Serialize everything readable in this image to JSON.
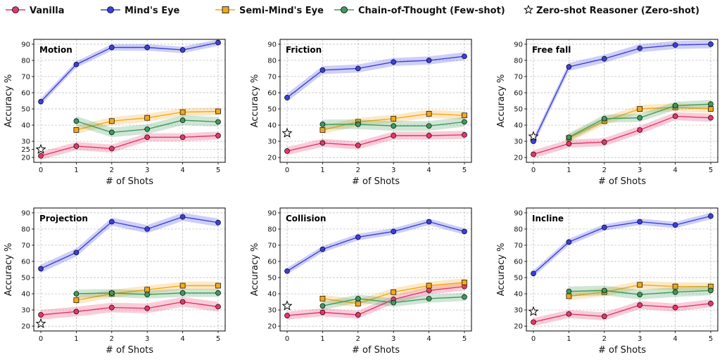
{
  "legend": {
    "items": [
      {
        "label": "Vanilla",
        "marker": "circle",
        "color": "#e8356a"
      },
      {
        "label": "Mind's Eye",
        "marker": "circle",
        "color": "#3a3fe0"
      },
      {
        "label": "Semi-Mind's Eye",
        "marker": "square",
        "color": "#f2a81d"
      },
      {
        "label": "Chain-of-Thought (Few-shot)",
        "marker": "circle",
        "color": "#3f9a5c"
      },
      {
        "label": "Zero-shot Reasoner (Zero-shot)",
        "marker": "star",
        "color": "#ffffff"
      }
    ]
  },
  "chart_data": [
    {
      "type": "line",
      "title": "Motion",
      "xlabel": "# of Shots",
      "ylabel": "Accuracy %",
      "x": [
        0,
        1,
        2,
        3,
        4,
        5
      ],
      "xlim": [
        0,
        5
      ],
      "ylim": [
        17,
        93
      ],
      "yticks": [
        20,
        25,
        30,
        40,
        50,
        60,
        70,
        80,
        90
      ],
      "grid": true,
      "series": [
        {
          "name": "Vanilla",
          "x": [
            0,
            1,
            2,
            3,
            4,
            5
          ],
          "values": [
            21,
            27,
            25.5,
            32.5,
            32.5,
            33.5
          ],
          "band": 2.5
        },
        {
          "name": "Mind's Eye",
          "x": [
            0,
            1,
            2,
            3,
            4,
            5
          ],
          "values": [
            54.5,
            77.5,
            88,
            88,
            86.5,
            91
          ],
          "band": 2
        },
        {
          "name": "Semi-Mind's Eye",
          "x": [
            1,
            2,
            3,
            4,
            5
          ],
          "values": [
            37,
            42.5,
            44.5,
            48,
            48.5
          ],
          "band": 2.5
        },
        {
          "name": "Chain-of-Thought (Few-shot)",
          "x": [
            1,
            2,
            3,
            4,
            5
          ],
          "values": [
            42.5,
            35.5,
            37.5,
            43,
            42
          ],
          "band": 3
        },
        {
          "name": "Zero-shot Reasoner (Zero-shot)",
          "x": [
            0
          ],
          "values": [
            25
          ],
          "band": 0
        }
      ]
    },
    {
      "type": "line",
      "title": "Friction",
      "xlabel": "# of Shots",
      "ylabel": "Accuracy %",
      "x": [
        0,
        1,
        2,
        3,
        4,
        5
      ],
      "xlim": [
        0,
        5
      ],
      "ylim": [
        17,
        93
      ],
      "yticks": [
        20,
        30,
        40,
        50,
        60,
        70,
        80,
        90
      ],
      "grid": true,
      "series": [
        {
          "name": "Vanilla",
          "x": [
            0,
            1,
            2,
            3,
            4,
            5
          ],
          "values": [
            24,
            29,
            27.5,
            33.5,
            33.5,
            34
          ],
          "band": 2.5
        },
        {
          "name": "Mind's Eye",
          "x": [
            0,
            1,
            2,
            3,
            4,
            5
          ],
          "values": [
            57,
            74,
            75,
            79,
            80,
            82.5
          ],
          "band": 2.5
        },
        {
          "name": "Semi-Mind's Eye",
          "x": [
            1,
            2,
            3,
            4,
            5
          ],
          "values": [
            37,
            42,
            44,
            47,
            46
          ],
          "band": 2.5
        },
        {
          "name": "Chain-of-Thought (Few-shot)",
          "x": [
            1,
            2,
            3,
            4,
            5
          ],
          "values": [
            40.5,
            40.5,
            39.5,
            39.5,
            42
          ],
          "band": 3
        },
        {
          "name": "Zero-shot Reasoner (Zero-shot)",
          "x": [
            0
          ],
          "values": [
            35
          ],
          "band": 0
        }
      ]
    },
    {
      "type": "line",
      "title": "Free fall",
      "xlabel": "# of Shots",
      "ylabel": "Accuracy %",
      "x": [
        0,
        1,
        2,
        3,
        4,
        5
      ],
      "xlim": [
        0,
        5
      ],
      "ylim": [
        17,
        93
      ],
      "yticks": [
        20,
        30,
        40,
        50,
        60,
        70,
        80,
        90
      ],
      "grid": true,
      "series": [
        {
          "name": "Vanilla",
          "x": [
            0,
            1,
            2,
            3,
            4,
            5
          ],
          "values": [
            22,
            28.5,
            29.5,
            37,
            45.5,
            44.5
          ],
          "band": 2.5
        },
        {
          "name": "Mind's Eye",
          "x": [
            0,
            1,
            2,
            3,
            4,
            5
          ],
          "values": [
            30,
            76,
            81,
            87.5,
            89.5,
            90
          ],
          "band": 2.5
        },
        {
          "name": "Semi-Mind's Eye",
          "x": [
            1,
            2,
            3,
            4,
            5
          ],
          "values": [
            32,
            42.5,
            50,
            51,
            50
          ],
          "band": 2.5
        },
        {
          "name": "Chain-of-Thought (Few-shot)",
          "x": [
            1,
            2,
            3,
            4,
            5
          ],
          "values": [
            32.5,
            44,
            44.5,
            52,
            53
          ],
          "band": 2.5
        },
        {
          "name": "Zero-shot Reasoner (Zero-shot)",
          "x": [
            0
          ],
          "values": [
            33
          ],
          "band": 0
        }
      ]
    },
    {
      "type": "line",
      "title": "Projection",
      "xlabel": "# of Shots",
      "ylabel": "Accuracy %",
      "x": [
        0,
        1,
        2,
        3,
        4,
        5
      ],
      "xlim": [
        0,
        5
      ],
      "ylim": [
        17,
        93
      ],
      "yticks": [
        20,
        30,
        40,
        50,
        60,
        70,
        80,
        90
      ],
      "grid": true,
      "series": [
        {
          "name": "Vanilla",
          "x": [
            0,
            1,
            2,
            3,
            4,
            5
          ],
          "values": [
            27,
            29,
            31.5,
            31,
            35,
            32
          ],
          "band": 3
        },
        {
          "name": "Mind's Eye",
          "x": [
            0,
            1,
            2,
            3,
            4,
            5
          ],
          "values": [
            55.5,
            65.5,
            84.5,
            80,
            87.5,
            84
          ],
          "band": 2.5
        },
        {
          "name": "Semi-Mind's Eye",
          "x": [
            1,
            2,
            3,
            4,
            5
          ],
          "values": [
            36,
            40,
            42.5,
            45,
            45
          ],
          "band": 2.5
        },
        {
          "name": "Chain-of-Thought (Few-shot)",
          "x": [
            1,
            2,
            3,
            4,
            5
          ],
          "values": [
            40,
            40.5,
            39.5,
            40.5,
            40.5
          ],
          "band": 2.5
        },
        {
          "name": "Zero-shot Reasoner (Zero-shot)",
          "x": [
            0
          ],
          "values": [
            21.5
          ],
          "band": 0
        }
      ]
    },
    {
      "type": "line",
      "title": "Collision",
      "xlabel": "# of Shots",
      "ylabel": "Accuracy %",
      "x": [
        0,
        1,
        2,
        3,
        4,
        5
      ],
      "xlim": [
        0,
        5
      ],
      "ylim": [
        17,
        93
      ],
      "yticks": [
        20,
        30,
        40,
        50,
        60,
        70,
        80,
        90
      ],
      "grid": true,
      "series": [
        {
          "name": "Vanilla",
          "x": [
            0,
            1,
            2,
            3,
            4,
            5
          ],
          "values": [
            26.5,
            28.5,
            27,
            36.5,
            42,
            44.5
          ],
          "band": 2.5
        },
        {
          "name": "Mind's Eye",
          "x": [
            0,
            1,
            2,
            3,
            4,
            5
          ],
          "values": [
            54,
            67.5,
            75,
            78.5,
            84.5,
            78.5
          ],
          "band": 2
        },
        {
          "name": "Semi-Mind's Eye",
          "x": [
            1,
            2,
            3,
            4,
            5
          ],
          "values": [
            37,
            34,
            41,
            45,
            47
          ],
          "band": 2.5
        },
        {
          "name": "Chain-of-Thought (Few-shot)",
          "x": [
            1,
            2,
            3,
            4,
            5
          ],
          "values": [
            32.5,
            37,
            34.5,
            37,
            38
          ],
          "band": 2.5
        },
        {
          "name": "Zero-shot Reasoner (Zero-shot)",
          "x": [
            0
          ],
          "values": [
            32.5
          ],
          "band": 0
        }
      ]
    },
    {
      "type": "line",
      "title": "Incline",
      "xlabel": "# of Shots",
      "ylabel": "Accuracy %",
      "x": [
        0,
        1,
        2,
        3,
        4,
        5
      ],
      "xlim": [
        0,
        5
      ],
      "ylim": [
        17,
        93
      ],
      "yticks": [
        20,
        30,
        40,
        50,
        60,
        70,
        80,
        90
      ],
      "grid": true,
      "series": [
        {
          "name": "Vanilla",
          "x": [
            0,
            1,
            2,
            3,
            4,
            5
          ],
          "values": [
            22.5,
            27.5,
            26,
            33,
            31.5,
            34
          ],
          "band": 2.5
        },
        {
          "name": "Mind's Eye",
          "x": [
            0,
            1,
            2,
            3,
            4,
            5
          ],
          "values": [
            52.5,
            72,
            81,
            84.5,
            82.5,
            88
          ],
          "band": 2
        },
        {
          "name": "Semi-Mind's Eye",
          "x": [
            1,
            2,
            3,
            4,
            5
          ],
          "values": [
            38.5,
            41,
            45.5,
            44.5,
            44.5
          ],
          "band": 2.5
        },
        {
          "name": "Chain-of-Thought (Few-shot)",
          "x": [
            1,
            2,
            3,
            4,
            5
          ],
          "values": [
            41.5,
            42,
            39.5,
            41,
            42
          ],
          "band": 3
        },
        {
          "name": "Zero-shot Reasoner (Zero-shot)",
          "x": [
            0
          ],
          "values": [
            29
          ],
          "band": 0
        }
      ]
    }
  ]
}
